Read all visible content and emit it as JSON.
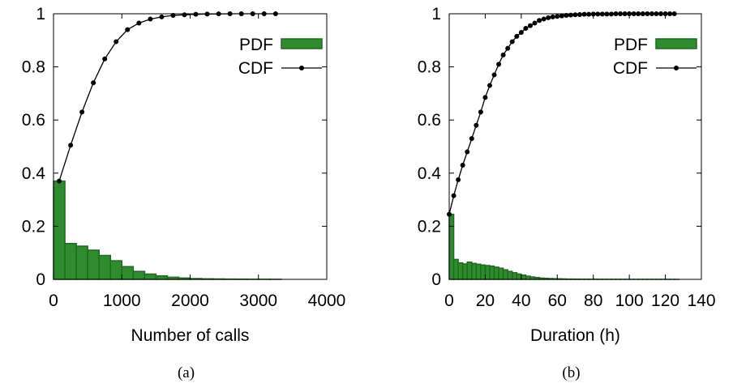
{
  "colors": {
    "pdf_fill": "#2e8b2e",
    "pdf_stroke": "#1e6b1e",
    "cdf_line": "#000000",
    "axis": "#000000",
    "background": "#ffffff"
  },
  "chart_data": [
    {
      "type": "bar",
      "panel_label": "(a)",
      "xlabel": "Number of calls",
      "ylabel": "",
      "xlim": [
        0,
        4000
      ],
      "ylim": [
        0,
        1
      ],
      "x_ticks": [
        "0",
        "1000",
        "2000",
        "3000",
        "4000"
      ],
      "y_ticks": [
        "0",
        "0.2",
        "0.4",
        "0.6",
        "0.8",
        "1"
      ],
      "grid": false,
      "legend_position": "top-right",
      "legend": [
        {
          "name": "PDF",
          "kind": "bar"
        },
        {
          "name": "CDF",
          "kind": "line-with-points"
        }
      ],
      "bin_width": 167,
      "series": [
        {
          "name": "PDF",
          "kind": "histogram",
          "bin_starts": [
            0,
            167,
            333,
            500,
            667,
            833,
            1000,
            1167,
            1333,
            1500,
            1667,
            1833,
            2000,
            2167,
            2333,
            2500,
            2667,
            2833,
            3000,
            3167
          ],
          "values": [
            0.37,
            0.135,
            0.125,
            0.11,
            0.09,
            0.07,
            0.048,
            0.03,
            0.02,
            0.013,
            0.008,
            0.005,
            0.003,
            0.002,
            0.0015,
            0.001,
            0.0008,
            0.0005,
            0.0004,
            0.0003
          ]
        },
        {
          "name": "CDF",
          "kind": "line",
          "x": [
            83,
            250,
            417,
            583,
            750,
            917,
            1083,
            1250,
            1417,
            1583,
            1750,
            1917,
            2083,
            2250,
            2417,
            2583,
            2750,
            2917,
            3083,
            3250
          ],
          "values": [
            0.37,
            0.505,
            0.63,
            0.74,
            0.83,
            0.895,
            0.94,
            0.965,
            0.98,
            0.988,
            0.994,
            0.996,
            0.998,
            0.999,
            0.9995,
            1.0,
            1.0,
            1.0,
            1.0,
            1.0
          ]
        }
      ]
    },
    {
      "type": "bar",
      "panel_label": "(b)",
      "xlabel": "Duration (h)",
      "ylabel": "",
      "xlim": [
        0,
        140
      ],
      "ylim": [
        0,
        1
      ],
      "x_ticks": [
        "0",
        "20",
        "40",
        "60",
        "80",
        "100",
        "120",
        "140"
      ],
      "y_ticks": [
        "0",
        "0.2",
        "0.4",
        "0.6",
        "0.8",
        "1"
      ],
      "grid": false,
      "legend_position": "top-right",
      "legend": [
        {
          "name": "PDF",
          "kind": "bar"
        },
        {
          "name": "CDF",
          "kind": "line-with-points"
        }
      ],
      "bin_width": 2.5,
      "series": [
        {
          "name": "PDF",
          "kind": "histogram",
          "bin_starts": [
            0,
            2.5,
            5,
            7.5,
            10,
            12.5,
            15,
            17.5,
            20,
            22.5,
            25,
            27.5,
            30,
            32.5,
            35,
            37.5,
            40,
            42.5,
            45,
            47.5,
            50,
            52.5,
            55,
            57.5,
            60,
            62.5,
            65,
            67.5,
            70,
            72.5,
            75,
            77.5,
            80,
            82.5,
            85,
            87.5,
            90,
            92.5,
            95,
            97.5,
            100,
            102.5,
            105,
            107.5,
            110,
            112.5,
            115,
            117.5,
            120,
            122.5,
            125
          ],
          "values": [
            0.245,
            0.075,
            0.062,
            0.058,
            0.065,
            0.06,
            0.057,
            0.054,
            0.052,
            0.05,
            0.046,
            0.042,
            0.036,
            0.03,
            0.025,
            0.02,
            0.016,
            0.012,
            0.009,
            0.007,
            0.005,
            0.004,
            0.003,
            0.0025,
            0.002,
            0.0015,
            0.001,
            0.001,
            0.0008,
            0.0006,
            0.0005,
            0.0004,
            0.0004,
            0.0003,
            0.0003,
            0.0002,
            0.0002,
            0.0002,
            0.0002,
            0.0001,
            0.0001,
            0.0001,
            0.0001,
            0.0001,
            0.0001,
            0.0001,
            0.0001,
            0.0001,
            0.0001,
            0.0001,
            0.0001
          ]
        },
        {
          "name": "CDF",
          "kind": "line",
          "x": [
            0,
            2.5,
            5,
            7.5,
            10,
            12.5,
            15,
            17.5,
            20,
            22.5,
            25,
            27.5,
            30,
            32.5,
            35,
            37.5,
            40,
            42.5,
            45,
            47.5,
            50,
            52.5,
            55,
            57.5,
            60,
            62.5,
            65,
            67.5,
            70,
            72.5,
            75,
            77.5,
            80,
            82.5,
            85,
            87.5,
            90,
            92.5,
            95,
            97.5,
            100,
            102.5,
            105,
            107.5,
            110,
            112.5,
            115,
            117.5,
            120,
            122.5,
            125
          ],
          "values": [
            0.245,
            0.315,
            0.375,
            0.43,
            0.48,
            0.53,
            0.58,
            0.63,
            0.685,
            0.73,
            0.77,
            0.81,
            0.845,
            0.87,
            0.895,
            0.915,
            0.93,
            0.945,
            0.955,
            0.965,
            0.975,
            0.98,
            0.985,
            0.988,
            0.99,
            0.992,
            0.994,
            0.995,
            0.996,
            0.997,
            0.998,
            0.998,
            0.999,
            0.999,
            0.999,
            0.999,
            0.999,
            1.0,
            1.0,
            1.0,
            1.0,
            1.0,
            1.0,
            1.0,
            1.0,
            1.0,
            1.0,
            1.0,
            1.0,
            1.0,
            1.0
          ]
        }
      ]
    }
  ]
}
